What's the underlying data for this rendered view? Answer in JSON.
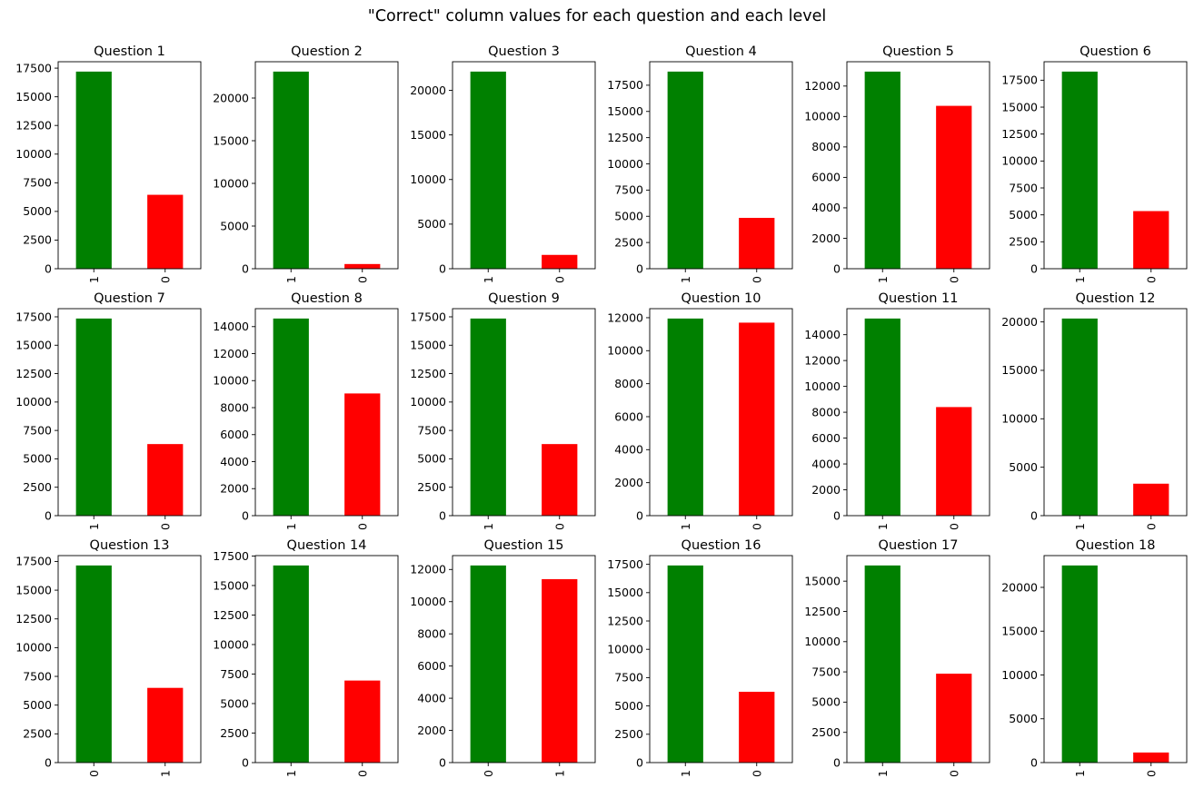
{
  "figure": {
    "suptitle": "\"Correct\" column values for each question and each level",
    "colors": {
      "correct": "#008000",
      "incorrect": "#ff0000"
    }
  },
  "chart_data": [
    {
      "type": "bar",
      "title": "Question 1",
      "categories": [
        "1",
        "0"
      ],
      "values": [
        17200,
        6450
      ],
      "bar_colors": [
        "#008000",
        "#ff0000"
      ],
      "ylim": [
        0,
        18060
      ],
      "yticks": [
        0,
        2500,
        5000,
        7500,
        10000,
        12500,
        15000,
        17500
      ]
    },
    {
      "type": "bar",
      "title": "Question 2",
      "categories": [
        "1",
        "0"
      ],
      "values": [
        23100,
        550
      ],
      "bar_colors": [
        "#008000",
        "#ff0000"
      ],
      "ylim": [
        0,
        24255
      ],
      "yticks": [
        0,
        5000,
        10000,
        15000,
        20000
      ]
    },
    {
      "type": "bar",
      "title": "Question 3",
      "categories": [
        "1",
        "0"
      ],
      "values": [
        22100,
        1550
      ],
      "bar_colors": [
        "#008000",
        "#ff0000"
      ],
      "ylim": [
        0,
        23205
      ],
      "yticks": [
        0,
        5000,
        10000,
        15000,
        20000
      ]
    },
    {
      "type": "bar",
      "title": "Question 4",
      "categories": [
        "1",
        "0"
      ],
      "values": [
        18800,
        4850
      ],
      "bar_colors": [
        "#008000",
        "#ff0000"
      ],
      "ylim": [
        0,
        19740
      ],
      "yticks": [
        0,
        2500,
        5000,
        7500,
        10000,
        12500,
        15000,
        17500
      ]
    },
    {
      "type": "bar",
      "title": "Question 5",
      "categories": [
        "1",
        "0"
      ],
      "values": [
        12950,
        10700
      ],
      "bar_colors": [
        "#008000",
        "#ff0000"
      ],
      "ylim": [
        0,
        13598
      ],
      "yticks": [
        0,
        2000,
        4000,
        6000,
        8000,
        10000,
        12000
      ]
    },
    {
      "type": "bar",
      "title": "Question 6",
      "categories": [
        "1",
        "0"
      ],
      "values": [
        18300,
        5350
      ],
      "bar_colors": [
        "#008000",
        "#ff0000"
      ],
      "ylim": [
        0,
        19215
      ],
      "yticks": [
        0,
        2500,
        5000,
        7500,
        10000,
        12500,
        15000,
        17500
      ]
    },
    {
      "type": "bar",
      "title": "Question 7",
      "categories": [
        "1",
        "0"
      ],
      "values": [
        17350,
        6300
      ],
      "bar_colors": [
        "#008000",
        "#ff0000"
      ],
      "ylim": [
        0,
        18218
      ],
      "yticks": [
        0,
        2500,
        5000,
        7500,
        10000,
        12500,
        15000,
        17500
      ]
    },
    {
      "type": "bar",
      "title": "Question 8",
      "categories": [
        "1",
        "0"
      ],
      "values": [
        14600,
        9050
      ],
      "bar_colors": [
        "#008000",
        "#ff0000"
      ],
      "ylim": [
        0,
        15330
      ],
      "yticks": [
        0,
        2000,
        4000,
        6000,
        8000,
        10000,
        12000,
        14000
      ]
    },
    {
      "type": "bar",
      "title": "Question 9",
      "categories": [
        "1",
        "0"
      ],
      "values": [
        17350,
        6300
      ],
      "bar_colors": [
        "#008000",
        "#ff0000"
      ],
      "ylim": [
        0,
        18218
      ],
      "yticks": [
        0,
        2500,
        5000,
        7500,
        10000,
        12500,
        15000,
        17500
      ]
    },
    {
      "type": "bar",
      "title": "Question 10",
      "categories": [
        "1",
        "0"
      ],
      "values": [
        11950,
        11700
      ],
      "bar_colors": [
        "#008000",
        "#ff0000"
      ],
      "ylim": [
        0,
        12548
      ],
      "yticks": [
        0,
        2000,
        4000,
        6000,
        8000,
        10000,
        12000
      ]
    },
    {
      "type": "bar",
      "title": "Question 11",
      "categories": [
        "1",
        "0"
      ],
      "values": [
        15250,
        8400
      ],
      "bar_colors": [
        "#008000",
        "#ff0000"
      ],
      "ylim": [
        0,
        16013
      ],
      "yticks": [
        0,
        2000,
        4000,
        6000,
        8000,
        10000,
        12000,
        14000
      ]
    },
    {
      "type": "bar",
      "title": "Question 12",
      "categories": [
        "1",
        "0"
      ],
      "values": [
        20350,
        3300
      ],
      "bar_colors": [
        "#008000",
        "#ff0000"
      ],
      "ylim": [
        0,
        21368
      ],
      "yticks": [
        0,
        5000,
        10000,
        15000,
        20000
      ]
    },
    {
      "type": "bar",
      "title": "Question 13",
      "categories": [
        "0",
        "1"
      ],
      "values": [
        17150,
        6500
      ],
      "bar_colors": [
        "#008000",
        "#ff0000"
      ],
      "ylim": [
        0,
        18008
      ],
      "yticks": [
        0,
        2500,
        5000,
        7500,
        10000,
        12500,
        15000,
        17500
      ]
    },
    {
      "type": "bar",
      "title": "Question 14",
      "categories": [
        "1",
        "0"
      ],
      "values": [
        16700,
        6950
      ],
      "bar_colors": [
        "#008000",
        "#ff0000"
      ],
      "ylim": [
        0,
        17535
      ],
      "yticks": [
        0,
        2500,
        5000,
        7500,
        10000,
        12500,
        15000,
        17500
      ]
    },
    {
      "type": "bar",
      "title": "Question 15",
      "categories": [
        "0",
        "1"
      ],
      "values": [
        12250,
        11400
      ],
      "bar_colors": [
        "#008000",
        "#ff0000"
      ],
      "ylim": [
        0,
        12863
      ],
      "yticks": [
        0,
        2000,
        4000,
        6000,
        8000,
        10000,
        12000
      ]
    },
    {
      "type": "bar",
      "title": "Question 16",
      "categories": [
        "1",
        "0"
      ],
      "values": [
        17400,
        6250
      ],
      "bar_colors": [
        "#008000",
        "#ff0000"
      ],
      "ylim": [
        0,
        18270
      ],
      "yticks": [
        0,
        2500,
        5000,
        7500,
        10000,
        12500,
        15000,
        17500
      ]
    },
    {
      "type": "bar",
      "title": "Question 17",
      "categories": [
        "1",
        "0"
      ],
      "values": [
        16300,
        7350
      ],
      "bar_colors": [
        "#008000",
        "#ff0000"
      ],
      "ylim": [
        0,
        17115
      ],
      "yticks": [
        0,
        2500,
        5000,
        7500,
        10000,
        12500,
        15000
      ]
    },
    {
      "type": "bar",
      "title": "Question 18",
      "categories": [
        "1",
        "0"
      ],
      "values": [
        22500,
        1150
      ],
      "bar_colors": [
        "#008000",
        "#ff0000"
      ],
      "ylim": [
        0,
        23625
      ],
      "yticks": [
        0,
        5000,
        10000,
        15000,
        20000
      ]
    }
  ]
}
